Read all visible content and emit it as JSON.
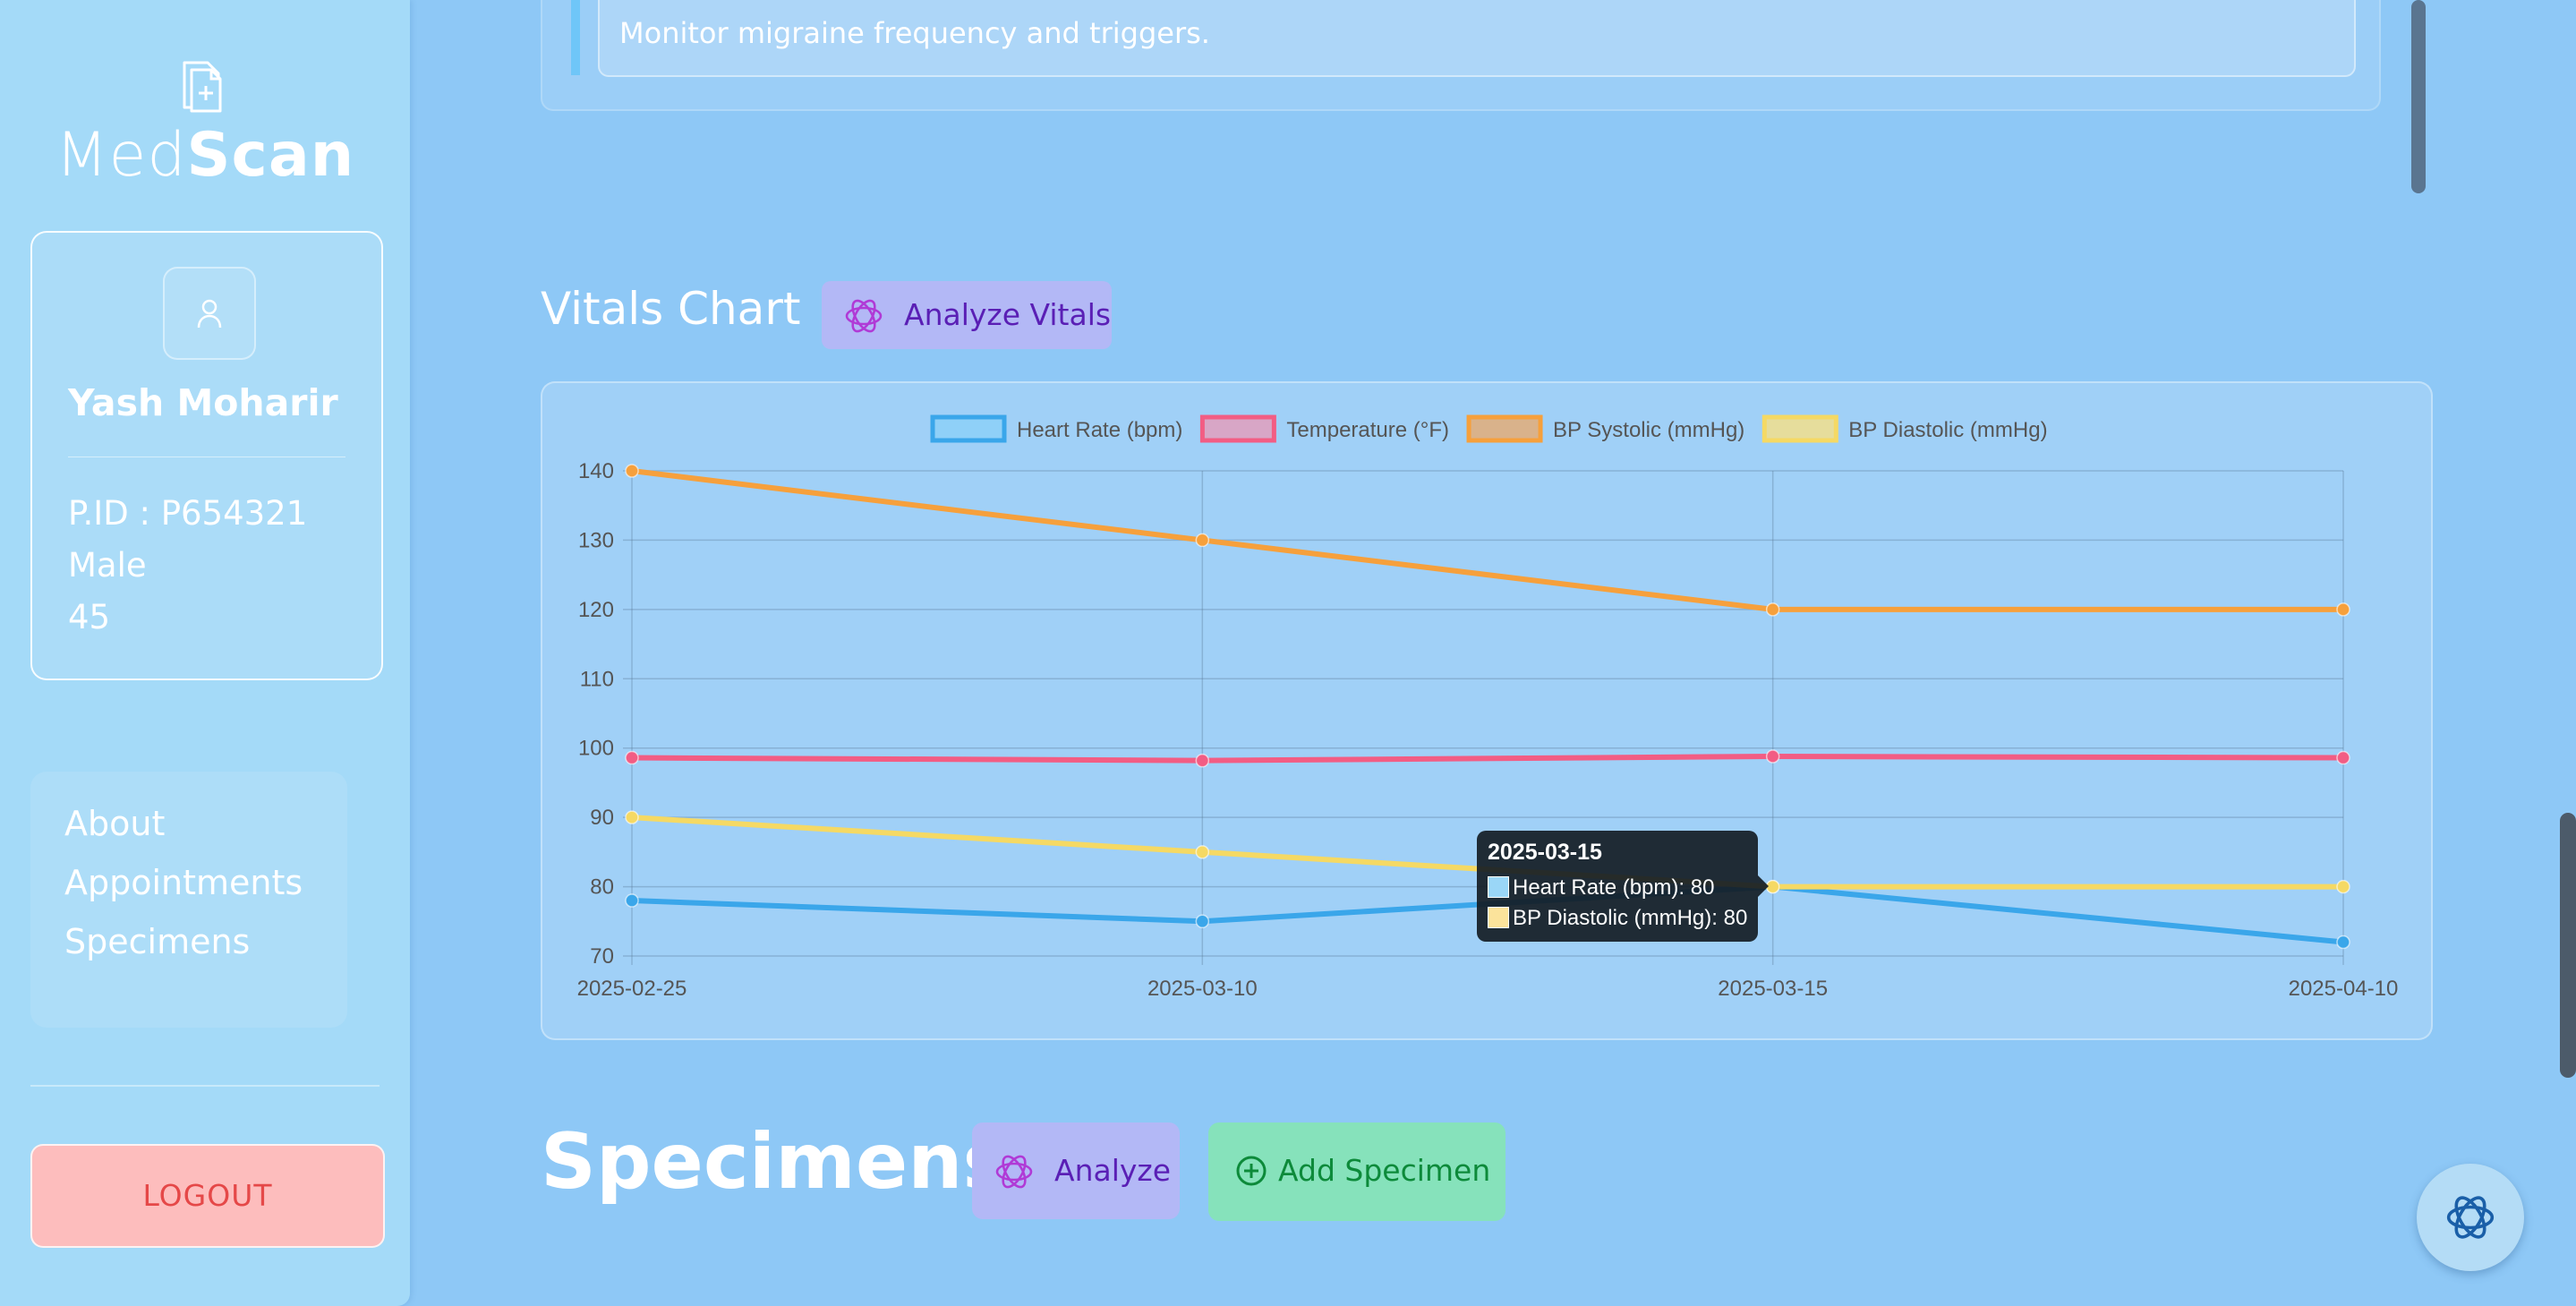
{
  "sidebar": {
    "logo_light": "Med",
    "logo_bold": "Scan",
    "patient": {
      "name": "Yash Moharir",
      "pid": "P.ID : P654321",
      "gender": "Male",
      "age": "45"
    },
    "nav": [
      "About",
      "Appointments",
      "Specimens"
    ],
    "logout_label": "LOGOUT"
  },
  "note": {
    "text": "Monitor migraine frequency and triggers."
  },
  "vitals": {
    "title": "Vitals Chart",
    "analyze_label": "Analyze Vitals"
  },
  "tooltip": {
    "title": "2025-03-15",
    "rows": [
      "Heart Rate (bpm): 80",
      "BP Diastolic (mmHg): 80"
    ],
    "colors": [
      "#9ad6f7",
      "#fbe39b"
    ]
  },
  "specimens": {
    "title": "Specimens",
    "analyze_label": "Analyze",
    "add_label": "Add Specimen"
  },
  "icons": {
    "logo": "file-plus-icon",
    "avatar": "user-icon",
    "ai": "openai-icon",
    "add": "plus-circle-icon"
  },
  "chart_data": {
    "type": "line",
    "x": [
      "2025-02-25",
      "2025-03-10",
      "2025-03-15",
      "2025-04-10"
    ],
    "ylim": [
      70,
      140
    ],
    "yticks": [
      70,
      80,
      90,
      100,
      110,
      120,
      130,
      140
    ],
    "grid": true,
    "legend_position": "top",
    "series": [
      {
        "name": "Heart Rate (bpm)",
        "values": [
          78,
          75,
          80,
          72
        ],
        "color": "#3aa6ea",
        "fill": "#8fd0f8"
      },
      {
        "name": "Temperature (°F)",
        "values": [
          98.6,
          98.2,
          98.8,
          98.6
        ],
        "color": "#f25d84",
        "fill": "#d8a6c6"
      },
      {
        "name": "BP Systolic (mmHg)",
        "values": [
          140,
          130,
          120,
          120
        ],
        "color": "#f6a03c",
        "fill": "#d9b28b"
      },
      {
        "name": "BP Diastolic (mmHg)",
        "values": [
          90,
          85,
          80,
          80
        ],
        "color": "#f5d964",
        "fill": "#e6dd9c"
      }
    ]
  }
}
